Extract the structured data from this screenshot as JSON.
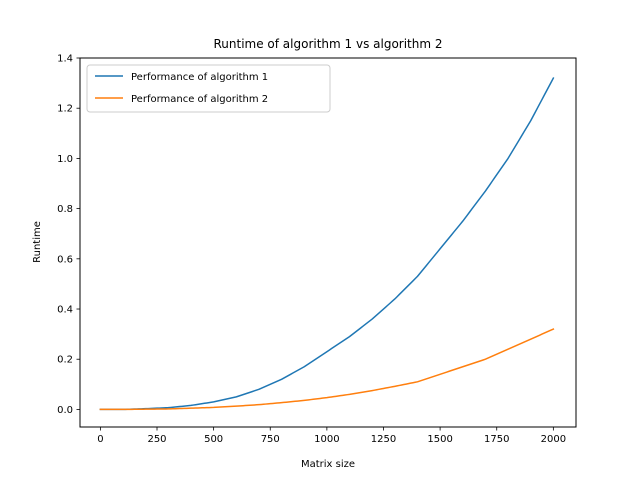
{
  "chart_data": {
    "type": "line",
    "title": "Runtime of algorithm 1 vs algorithm 2",
    "xlabel": "Matrix size",
    "ylabel": "Runtime",
    "xlim": [
      -90,
      2100
    ],
    "ylim": [
      -0.07,
      1.4
    ],
    "xticks": [
      0,
      250,
      500,
      750,
      1000,
      1250,
      1500,
      1750,
      2000
    ],
    "yticks": [
      0.0,
      0.2,
      0.4,
      0.6,
      0.8,
      1.0,
      1.2,
      1.4
    ],
    "xtick_labels": [
      "0",
      "250",
      "500",
      "750",
      "1000",
      "1250",
      "1500",
      "1750",
      "2000"
    ],
    "ytick_labels": [
      "0.0",
      "0.2",
      "0.4",
      "0.6",
      "0.8",
      "1.0",
      "1.2",
      "1.4"
    ],
    "grid": false,
    "legend_position": "upper-left",
    "series": [
      {
        "name": "Performance of algorithm 1",
        "color": "#1f77b4",
        "x": [
          0,
          100,
          200,
          300,
          400,
          500,
          600,
          700,
          800,
          900,
          1000,
          1100,
          1200,
          1300,
          1400,
          1500,
          1600,
          1700,
          1800,
          1900,
          2000
        ],
        "values": [
          0.0,
          0.0,
          0.003,
          0.007,
          0.016,
          0.03,
          0.05,
          0.08,
          0.12,
          0.17,
          0.23,
          0.29,
          0.36,
          0.44,
          0.53,
          0.64,
          0.75,
          0.87,
          1.0,
          1.15,
          1.32
        ]
      },
      {
        "name": "Performance of algorithm 2",
        "color": "#ff7f0e",
        "x": [
          0,
          100,
          200,
          300,
          400,
          500,
          600,
          700,
          800,
          900,
          1000,
          1100,
          1200,
          1300,
          1400,
          1500,
          1600,
          1700,
          1800,
          1900,
          2000
        ],
        "values": [
          0.0,
          0.0,
          0.001,
          0.002,
          0.005,
          0.008,
          0.013,
          0.019,
          0.027,
          0.036,
          0.047,
          0.06,
          0.075,
          0.092,
          0.11,
          0.14,
          0.17,
          0.2,
          0.24,
          0.28,
          0.32
        ]
      }
    ]
  }
}
